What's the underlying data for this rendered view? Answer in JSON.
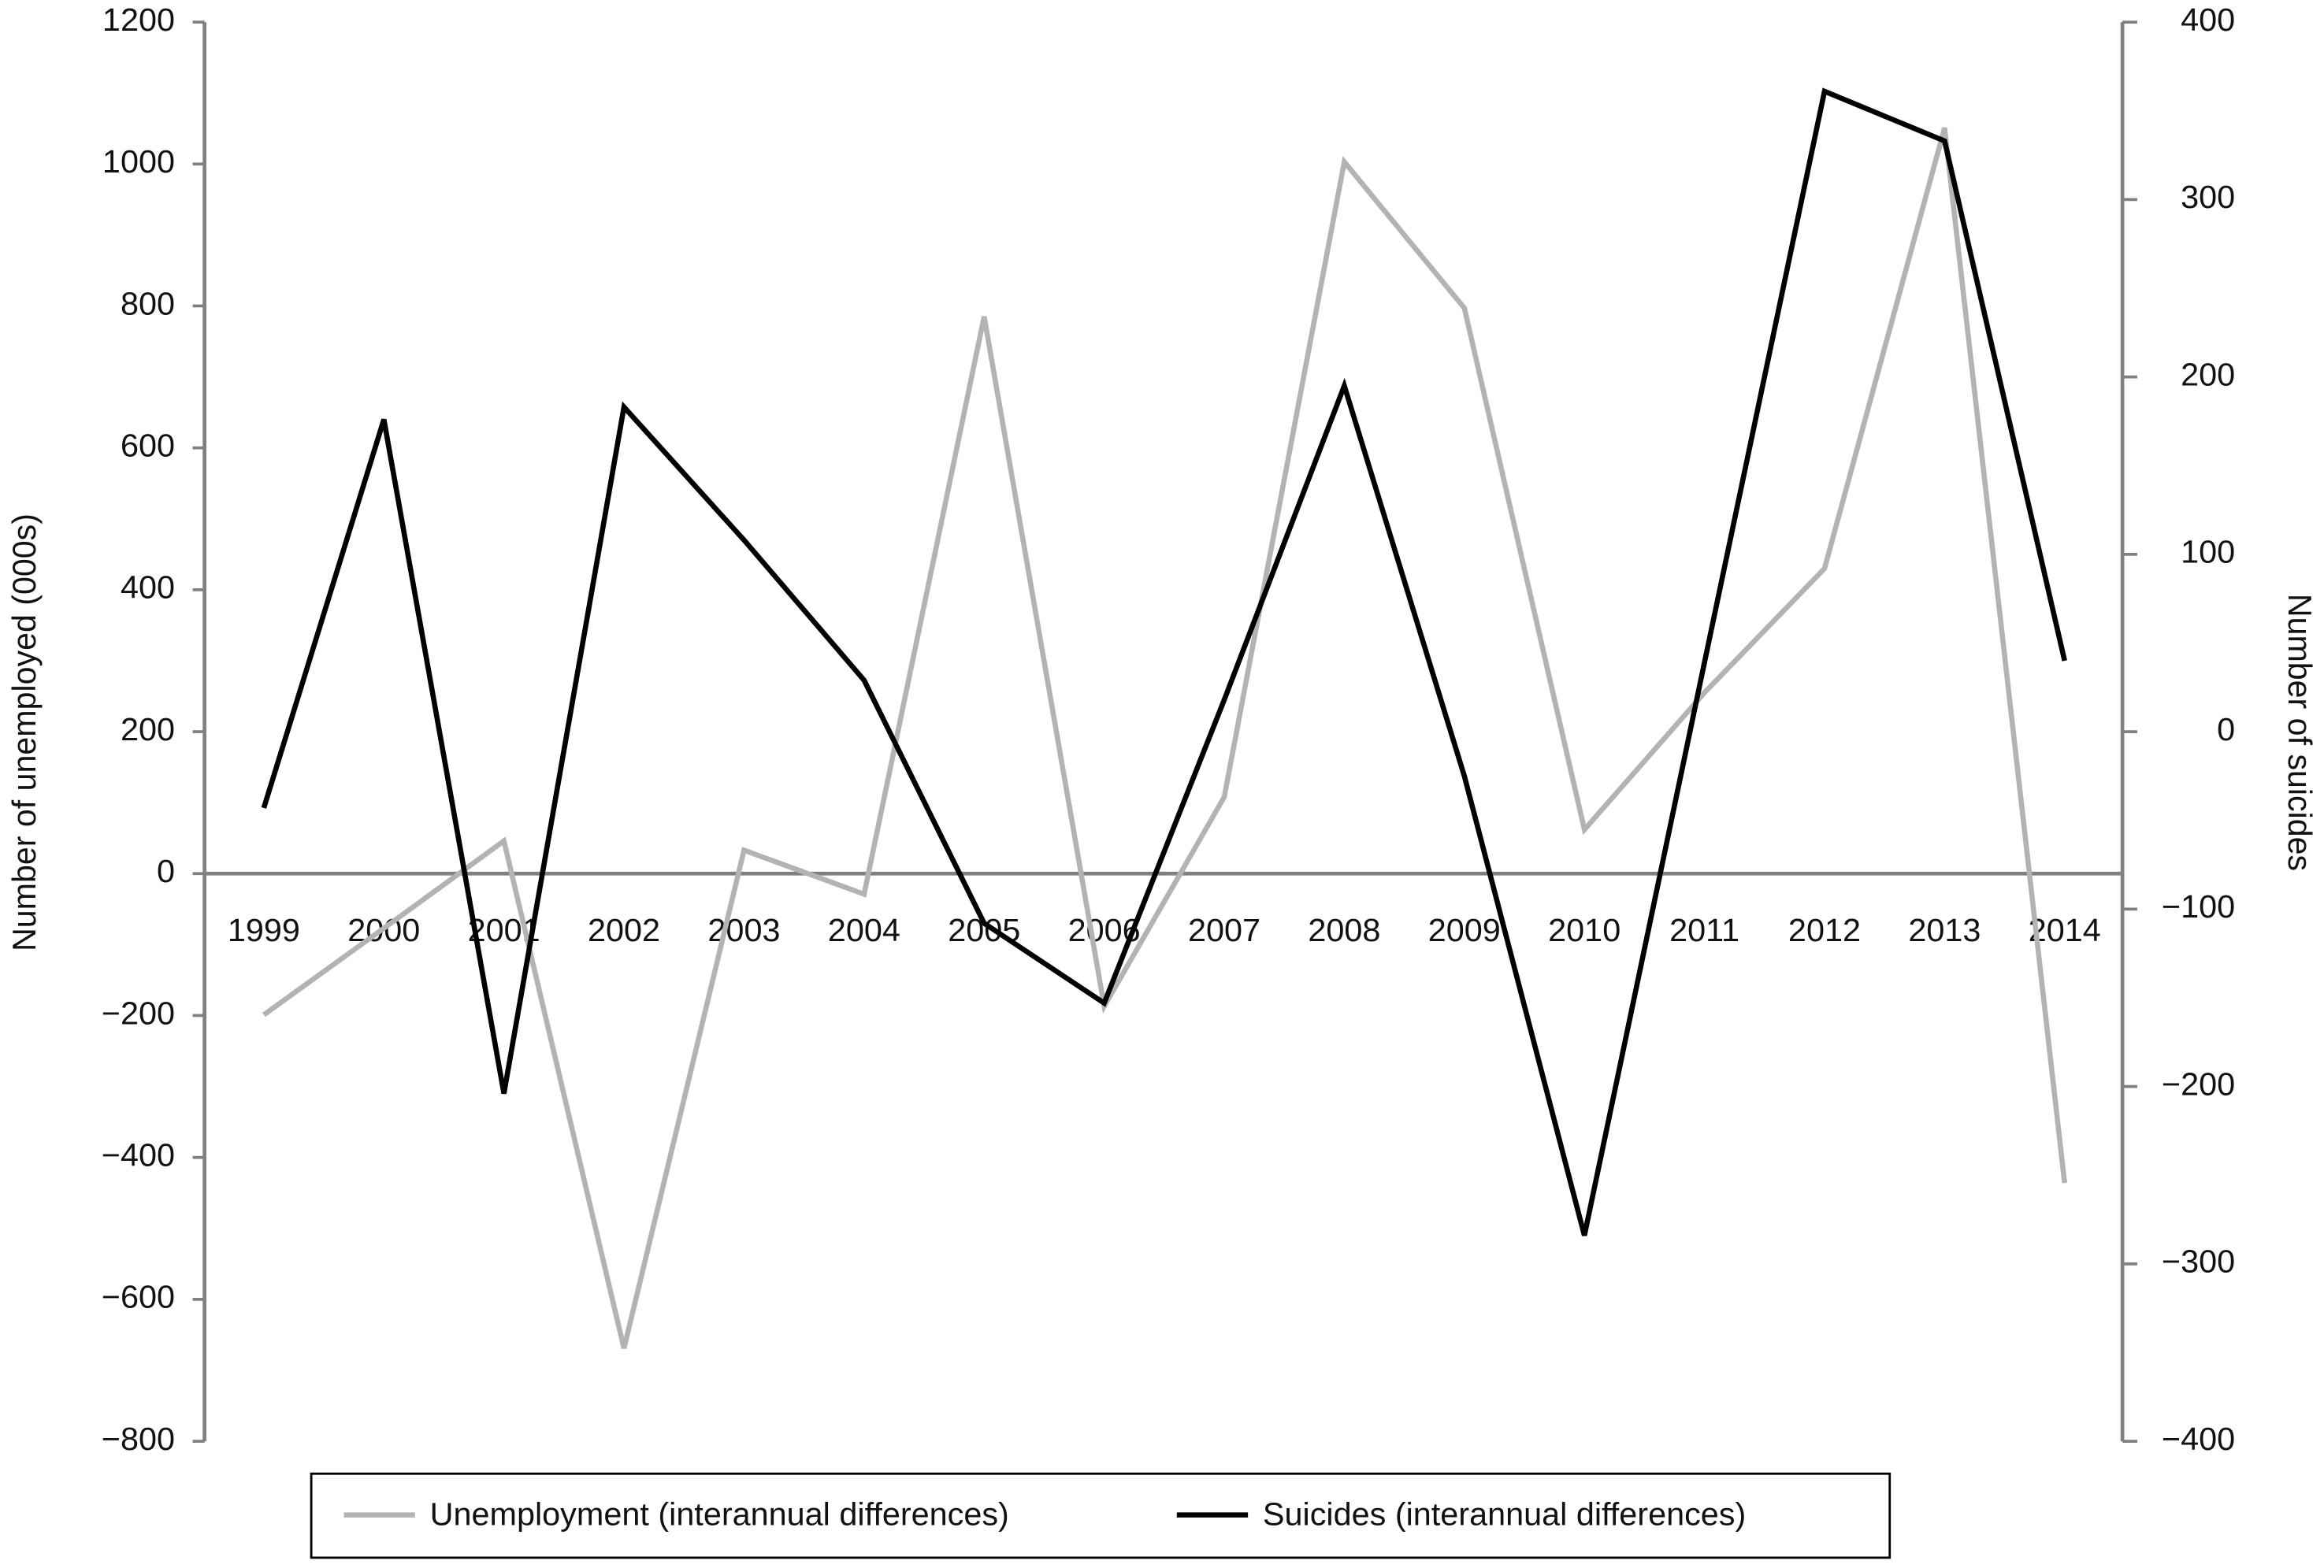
{
  "chart_data": {
    "type": "line",
    "categories": [
      "1999",
      "2000",
      "2001",
      "2002",
      "2003",
      "2004",
      "2005",
      "2006",
      "2007",
      "2008",
      "2009",
      "2010",
      "2011",
      "2012",
      "2013",
      "2014"
    ],
    "y_label": "Number of unemployed (000s)",
    "y2_label": "Number of suicides",
    "ylim": [
      -800,
      1200
    ],
    "yticks": [
      {
        "value": -800,
        "label": "−800"
      },
      {
        "value": -600,
        "label": "−600"
      },
      {
        "value": -400,
        "label": "−400"
      },
      {
        "value": -200,
        "label": "−200"
      },
      0,
      200,
      400,
      600,
      800,
      1000,
      1200
    ],
    "y2lim": [
      -400,
      400
    ],
    "y2ticks": [
      {
        "value": -400,
        "label": "−400"
      },
      {
        "value": -300,
        "label": "−300"
      },
      {
        "value": -200,
        "label": "−200"
      },
      {
        "value": -100,
        "label": "−100"
      },
      0,
      100,
      200,
      300,
      400
    ],
    "series": [
      {
        "name": "Unemployment (interannual differences)",
        "color": "#b3b3b3",
        "values": [
          -199,
          -77,
          46,
          -669,
          33,
          -29,
          785,
          -187,
          108,
          1003,
          797,
          62,
          255,
          430,
          1051,
          -436
        ]
      },
      {
        "name": "Suicides (interannual differences)",
        "color": "#000000",
        "axis": "y2",
        "values": [
          -43,
          176,
          -204,
          183,
          108,
          29,
          -108,
          -153,
          18,
          195,
          -25,
          -284,
          39,
          361,
          333,
          40
        ]
      }
    ]
  }
}
